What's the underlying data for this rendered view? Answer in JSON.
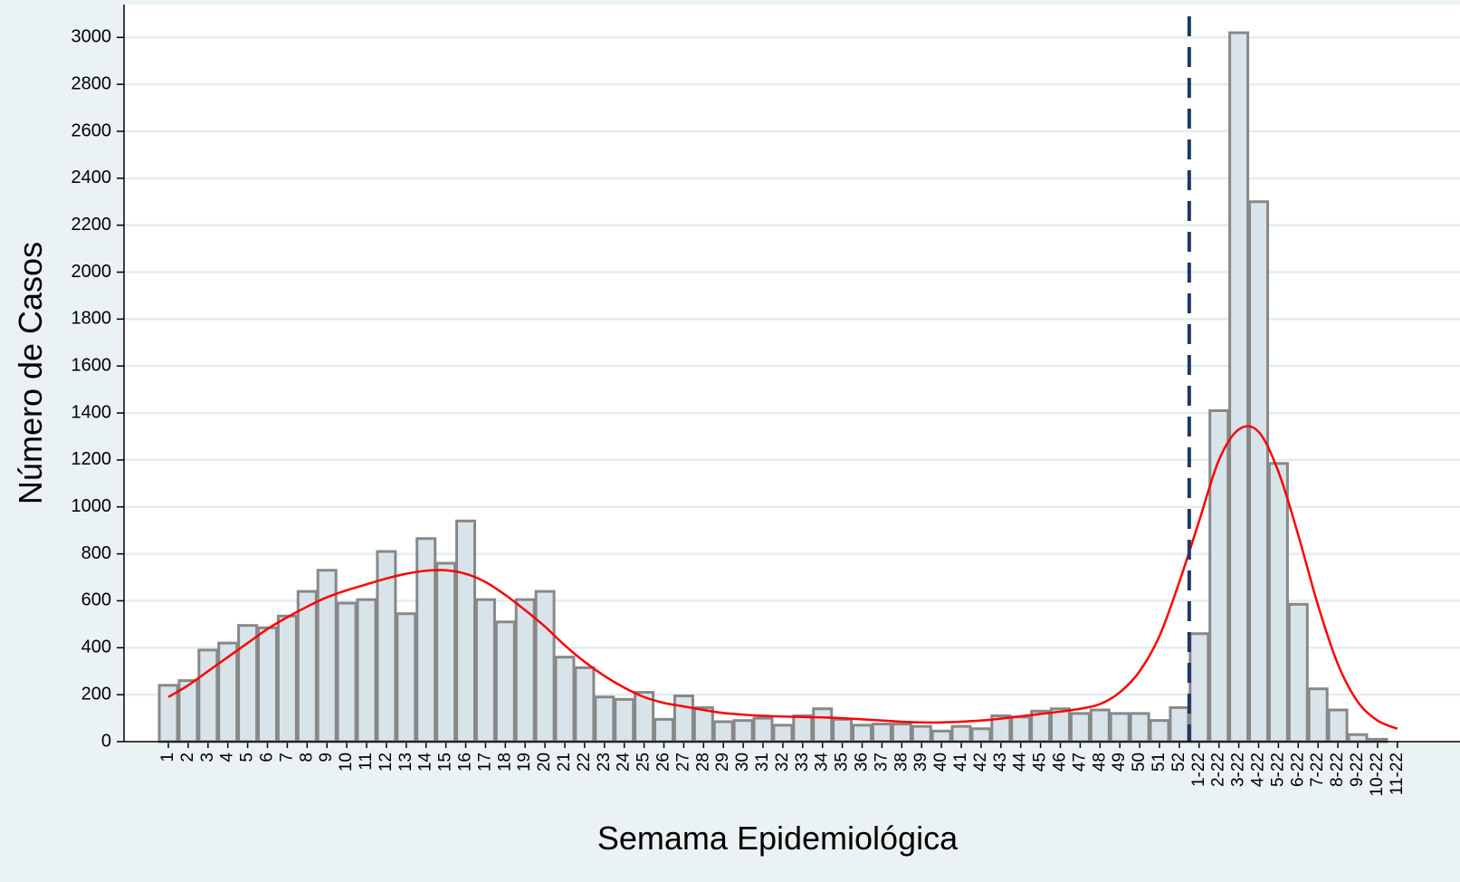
{
  "chart_data": {
    "type": "bar",
    "x_label": "Semama Epidemiológica",
    "y_label": "Número de Casos",
    "categories": [
      "1",
      "2",
      "3",
      "4",
      "5",
      "6",
      "7",
      "8",
      "9",
      "10",
      "11",
      "12",
      "13",
      "14",
      "15",
      "16",
      "17",
      "18",
      "19",
      "20",
      "21",
      "22",
      "23",
      "24",
      "25",
      "26",
      "27",
      "28",
      "29",
      "30",
      "31",
      "32",
      "33",
      "34",
      "35",
      "36",
      "37",
      "38",
      "39",
      "40",
      "41",
      "42",
      "43",
      "44",
      "45",
      "46",
      "47",
      "48",
      "49",
      "50",
      "51",
      "52",
      "1-22",
      "2-22",
      "3-22",
      "4-22",
      "5-22",
      "6-22",
      "7-22",
      "8-22",
      "9-22",
      "10-22",
      "11-22"
    ],
    "series": [
      {
        "type": "bar",
        "color": "#d9e4ea",
        "values": [
          240,
          260,
          390,
          420,
          495,
          485,
          535,
          640,
          730,
          590,
          605,
          810,
          545,
          865,
          760,
          940,
          605,
          510,
          605,
          640,
          360,
          315,
          190,
          180,
          210,
          95,
          195,
          145,
          85,
          90,
          100,
          70,
          110,
          140,
          95,
          70,
          75,
          75,
          65,
          45,
          65,
          55,
          110,
          105,
          130,
          140,
          120,
          135,
          120,
          120,
          90,
          145,
          460,
          1410,
          3020,
          2300,
          1185,
          585,
          225,
          135,
          30,
          10,
          0
        ]
      },
      {
        "type": "line",
        "color": "#ff0000",
        "values": [
          190,
          240,
          300,
          360,
          420,
          480,
          530,
          575,
          615,
          645,
          670,
          695,
          715,
          728,
          730,
          715,
          680,
          625,
          560,
          490,
          410,
          340,
          280,
          230,
          190,
          165,
          150,
          135,
          122,
          115,
          110,
          107,
          105,
          103,
          100,
          95,
          90,
          85,
          82,
          82,
          85,
          90,
          98,
          108,
          118,
          128,
          140,
          160,
          210,
          300,
          450,
          680,
          940,
          1200,
          1330,
          1320,
          1150,
          880,
          580,
          330,
          170,
          90,
          55
        ]
      }
    ],
    "ylim": [
      0,
      3140
    ],
    "yticks": [
      0,
      200,
      400,
      600,
      800,
      1000,
      1200,
      1400,
      1600,
      1800,
      2000,
      2200,
      2400,
      2600,
      2800,
      3000
    ],
    "grid": true
  }
}
